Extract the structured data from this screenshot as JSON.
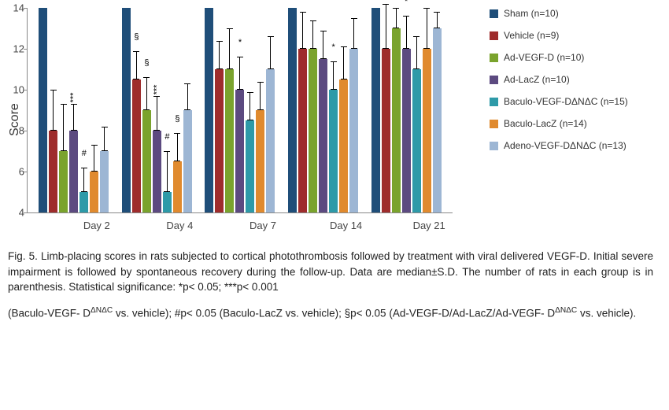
{
  "chart": {
    "type": "bar",
    "ylabel": "Score",
    "ylim": [
      4,
      14
    ],
    "yticks": [
      4,
      6,
      8,
      10,
      12,
      14
    ],
    "categories": [
      "Day 2",
      "Day 4",
      "Day 7",
      "Day 14",
      "Day 21"
    ],
    "series": [
      {
        "name": "Sham (n=10)",
        "color": "#1f4e79"
      },
      {
        "name": "Vehicle (n=9)",
        "color": "#9e2c2c"
      },
      {
        "name": "Ad-VEGF-D (n=10)",
        "color": "#7aa32d"
      },
      {
        "name": "Ad-LacZ (n=10)",
        "color": "#5c4a80"
      },
      {
        "name": "Baculo-VEGF-DΔNΔC (n=15)",
        "color": "#2e9aa8"
      },
      {
        "name": "Baculo-LacZ (n=14)",
        "color": "#e08a2e"
      },
      {
        "name": "Adeno-VEGF-DΔNΔC (n=13)",
        "color": "#9db6d4"
      }
    ],
    "data": [
      [
        {
          "v": 14,
          "e": 0
        },
        {
          "v": 8,
          "e": 2
        },
        {
          "v": 7,
          "e": 2.3
        },
        {
          "v": 8,
          "e": 1.3,
          "sig": "***",
          "sig_dy": -2
        },
        {
          "v": 5,
          "e": 1.2,
          "sig": "#",
          "sig_dy": -12
        },
        {
          "v": 6,
          "e": 1.3
        },
        {
          "v": 7,
          "e": 1.2
        }
      ],
      [
        {
          "v": 14,
          "e": 0
        },
        {
          "v": 10.5,
          "e": 1.4,
          "sig": "§",
          "sig_dy": -12
        },
        {
          "v": 9,
          "e": 1.6,
          "sig": "§",
          "sig_dy": -12
        },
        {
          "v": 8,
          "e": 1.7,
          "sig": "***",
          "sig_dy": -2
        },
        {
          "v": 5,
          "e": 2,
          "sig": "#",
          "sig_dy": -12
        },
        {
          "v": 6.5,
          "e": 1.4,
          "sig": "§",
          "sig_dy": -12
        },
        {
          "v": 9,
          "e": 1.3
        }
      ],
      [
        {
          "v": 14,
          "e": 0
        },
        {
          "v": 11,
          "e": 1.4
        },
        {
          "v": 11,
          "e": 2
        },
        {
          "v": 10,
          "e": 1.6,
          "sig": "*",
          "sig_dy": -12
        },
        {
          "v": 8.5,
          "e": 1.4
        },
        {
          "v": 9,
          "e": 1.4
        },
        {
          "v": 11,
          "e": 1.6
        }
      ],
      [
        {
          "v": 14,
          "e": 0
        },
        {
          "v": 12,
          "e": 1.8
        },
        {
          "v": 12,
          "e": 1.4
        },
        {
          "v": 11.5,
          "e": 1.4
        },
        {
          "v": 10,
          "e": 1.4,
          "sig": "*",
          "sig_dy": -12
        },
        {
          "v": 10.5,
          "e": 1.6
        },
        {
          "v": 12,
          "e": 1.5
        }
      ],
      [
        {
          "v": 14,
          "e": 0
        },
        {
          "v": 12,
          "e": 2.2
        },
        {
          "v": 13,
          "e": 1
        },
        {
          "v": 12,
          "e": 1.6,
          "sig": "*",
          "sig_dy": -12
        },
        {
          "v": 11,
          "e": 1.6
        },
        {
          "v": 12,
          "e": 2
        },
        {
          "v": 13,
          "e": 0.8
        }
      ]
    ],
    "background_color": "#ffffff"
  },
  "caption": {
    "line1": "Fig. 5. Limb-placing scores in rats subjected to cortical photothrombosis followed by treatment with viral delivered VEGF-D. Initial severe impairment is followed by spontaneous recovery during the follow-up. Data are median±S.D. The number of rats in each group is in parenthesis. Statistical significance: *p< 0.05; ***p< 0.001",
    "line2_pre": "(Baculo-VEGF- D",
    "line2_sup1": "ΔNΔC",
    "line2_mid1": " vs. vehicle); #p< 0.05 (Baculo-LacZ vs. vehicle); §p< 0.05 (Ad-VEGF-D/Ad-LacZ/Ad-VEGF- D",
    "line2_sup2": "ΔNΔC",
    "line2_post": " vs. vehicle)."
  }
}
